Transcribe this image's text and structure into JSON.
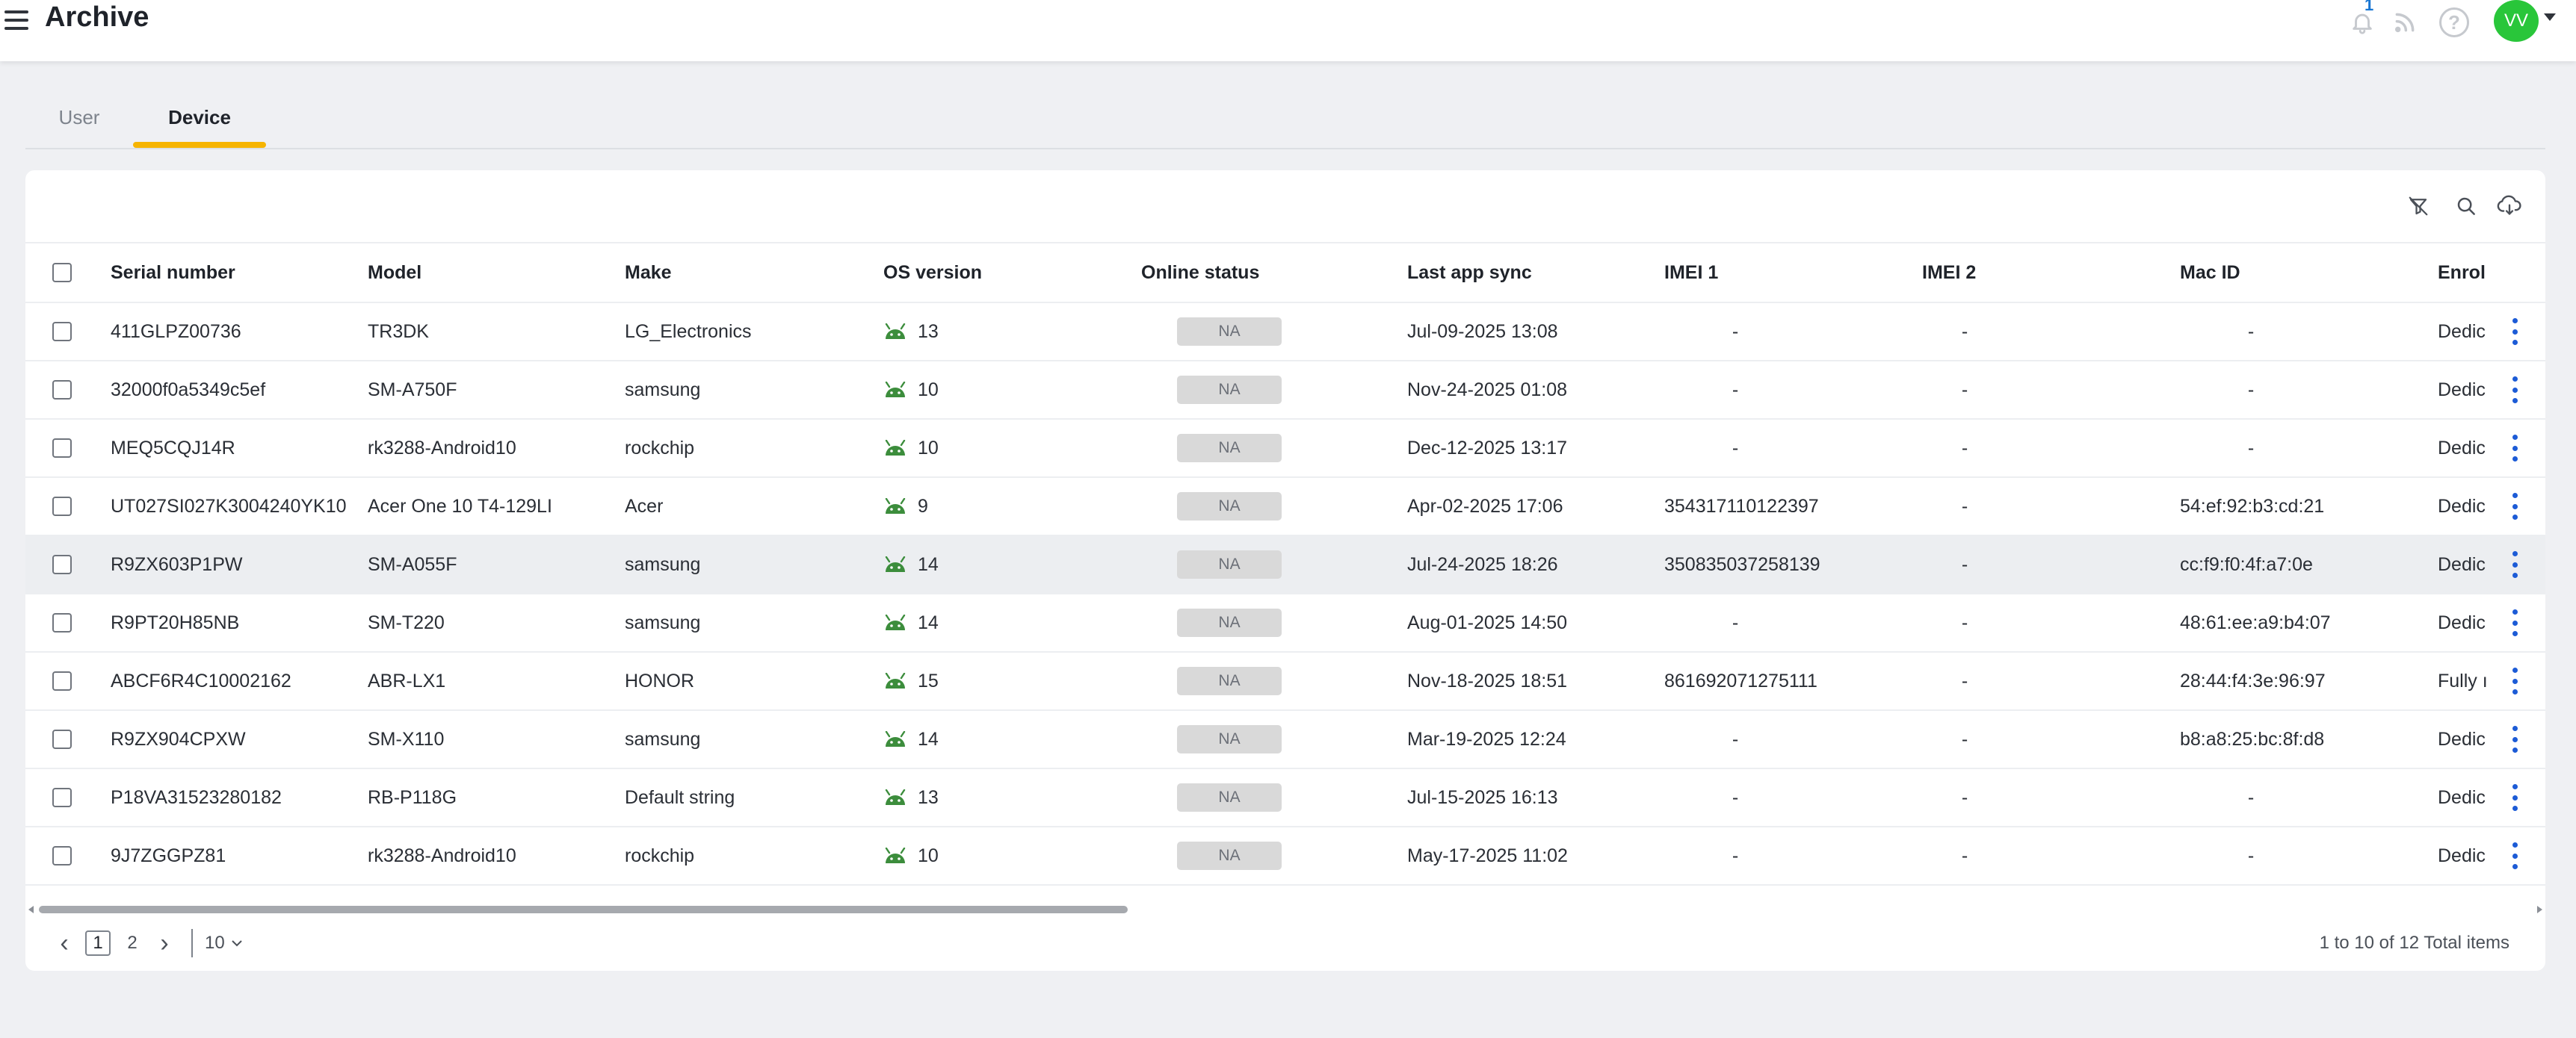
{
  "header": {
    "title": "Archive",
    "notification_count": "1",
    "help_glyph": "?",
    "avatar_initials": "VV",
    "icons": [
      "menu-icon",
      "bell-icon",
      "rss-icon",
      "help-icon",
      "chevron-down-icon"
    ]
  },
  "tabs": [
    {
      "label": "User",
      "active": false
    },
    {
      "label": "Device",
      "active": true
    }
  ],
  "toolbar": {
    "icons": [
      "clear-filter-icon",
      "search-icon",
      "cloud-download-icon"
    ]
  },
  "table": {
    "columns": [
      "Serial number",
      "Model",
      "Make",
      "OS version",
      "Online status",
      "Last app sync",
      "IMEI 1",
      "IMEI 2",
      "Mac ID",
      "Enrol"
    ],
    "rows": [
      {
        "serial": "411GLPZ00736",
        "model": "TR3DK",
        "make": "LG_Electronics",
        "os": "13",
        "status": "NA",
        "sync": "Jul-09-2025 13:08",
        "imei1": "-",
        "imei2": "-",
        "mac": "-",
        "enrol": "Dedic"
      },
      {
        "serial": "32000f0a5349c5ef",
        "model": "SM-A750F",
        "make": "samsung",
        "os": "10",
        "status": "NA",
        "sync": "Nov-24-2025 01:08",
        "imei1": "-",
        "imei2": "-",
        "mac": "-",
        "enrol": "Dedic"
      },
      {
        "serial": "MEQ5CQJ14R",
        "model": "rk3288-Android10",
        "make": "rockchip",
        "os": "10",
        "status": "NA",
        "sync": "Dec-12-2025 13:17",
        "imei1": "-",
        "imei2": "-",
        "mac": "-",
        "enrol": "Dedic"
      },
      {
        "serial": "UT027SI027K3004240YK10",
        "model": "Acer One 10 T4-129LI",
        "make": "Acer",
        "os": "9",
        "status": "NA",
        "sync": "Apr-02-2025 17:06",
        "imei1": "354317110122397",
        "imei2": "-",
        "mac": "54:ef:92:b3:cd:21",
        "enrol": "Dedic"
      },
      {
        "serial": "R9ZX603P1PW",
        "model": "SM-A055F",
        "make": "samsung",
        "os": "14",
        "status": "NA",
        "sync": "Jul-24-2025 18:26",
        "imei1": "350835037258139",
        "imei2": "-",
        "mac": "cc:f9:f0:4f:a7:0e",
        "enrol": "Dedic"
      },
      {
        "serial": "R9PT20H85NB",
        "model": "SM-T220",
        "make": "samsung",
        "os": "14",
        "status": "NA",
        "sync": "Aug-01-2025 14:50",
        "imei1": "-",
        "imei2": "-",
        "mac": "48:61:ee:a9:b4:07",
        "enrol": "Dedic"
      },
      {
        "serial": "ABCF6R4C10002162",
        "model": "ABR-LX1",
        "make": "HONOR",
        "os": "15",
        "status": "NA",
        "sync": "Nov-18-2025 18:51",
        "imei1": "861692071275111",
        "imei2": "-",
        "mac": "28:44:f4:3e:96:97",
        "enrol": "Fully ı"
      },
      {
        "serial": "R9ZX904CPXW",
        "model": "SM-X110",
        "make": "samsung",
        "os": "14",
        "status": "NA",
        "sync": "Mar-19-2025 12:24",
        "imei1": "-",
        "imei2": "-",
        "mac": "b8:a8:25:bc:8f:d8",
        "enrol": "Dedic"
      },
      {
        "serial": "P18VA31523280182",
        "model": "RB-P118G",
        "make": "Default string",
        "os": "13",
        "status": "NA",
        "sync": "Jul-15-2025 16:13",
        "imei1": "-",
        "imei2": "-",
        "mac": "-",
        "enrol": "Dedic"
      },
      {
        "serial": "9J7ZGGPZ81",
        "model": "rk3288-Android10",
        "make": "rockchip",
        "os": "10",
        "status": "NA",
        "sync": "May-17-2025 11:02",
        "imei1": "-",
        "imei2": "-",
        "mac": "-",
        "enrol": "Dedic"
      }
    ],
    "highlighted_row": 4
  },
  "pagination": {
    "prev_glyph": "‹",
    "next_glyph": "›",
    "pages": [
      "1",
      "2"
    ],
    "current_page": "1",
    "page_size": "10",
    "summary": "1 to 10 of 12 Total items"
  },
  "colors": {
    "accent_tab": "#f6b400",
    "avatar": "#29c63a",
    "kebab": "#1c5bd6",
    "android_icon": "#3c8d3c"
  }
}
